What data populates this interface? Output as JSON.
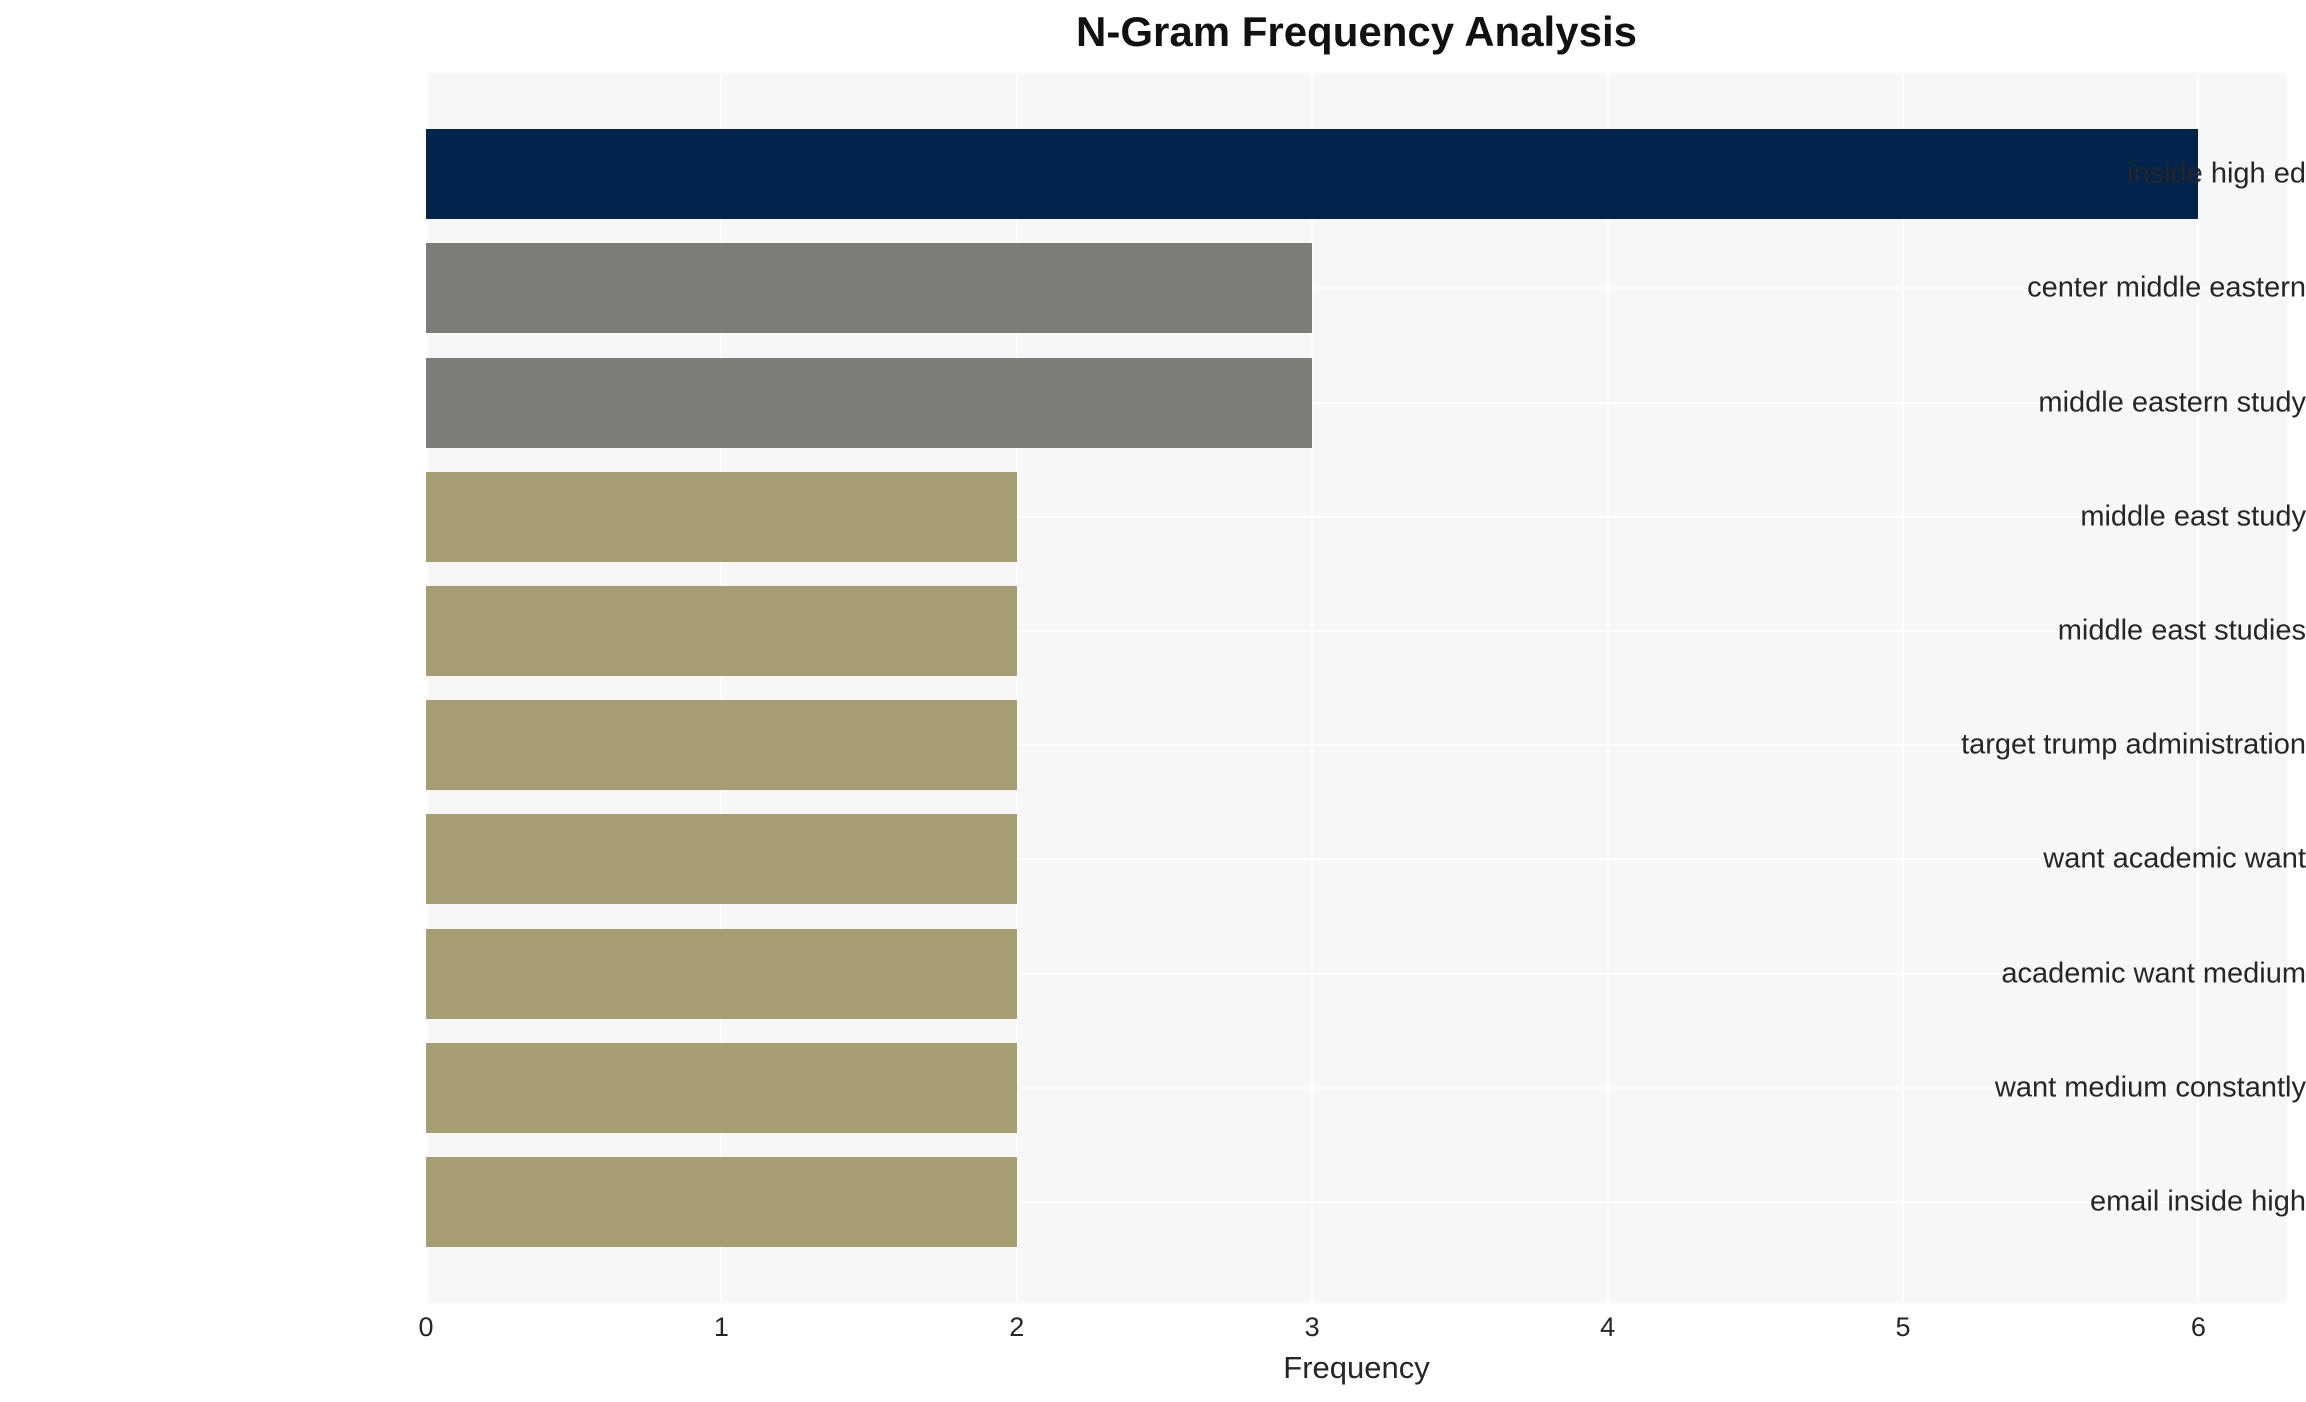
{
  "chart_data": {
    "type": "bar",
    "orientation": "horizontal",
    "title": "N-Gram Frequency Analysis",
    "xlabel": "Frequency",
    "ylabel": "",
    "categories": [
      "inside high ed",
      "center middle eastern",
      "middle eastern study",
      "middle east study",
      "middle east studies",
      "target trump administration",
      "want academic want",
      "academic want medium",
      "want medium constantly",
      "email inside high"
    ],
    "values": [
      6,
      3,
      3,
      2,
      2,
      2,
      2,
      2,
      2,
      2
    ],
    "bar_colors": [
      "#02234c",
      "#7c7c78",
      "#7c7c78",
      "#a69d73",
      "#a69d73",
      "#a69d73",
      "#a69d73",
      "#a69d73",
      "#a69d73",
      "#a69d73"
    ],
    "xticks": [
      0,
      1,
      2,
      3,
      4,
      5,
      6
    ],
    "xlim": [
      0,
      6.3
    ],
    "grid": true,
    "gridline_color": "#ffffff",
    "plot_background": "#f7f7f7",
    "figure_background": "#ffffff",
    "text_color": "#262626",
    "title_color": "#111111",
    "legend": false
  }
}
